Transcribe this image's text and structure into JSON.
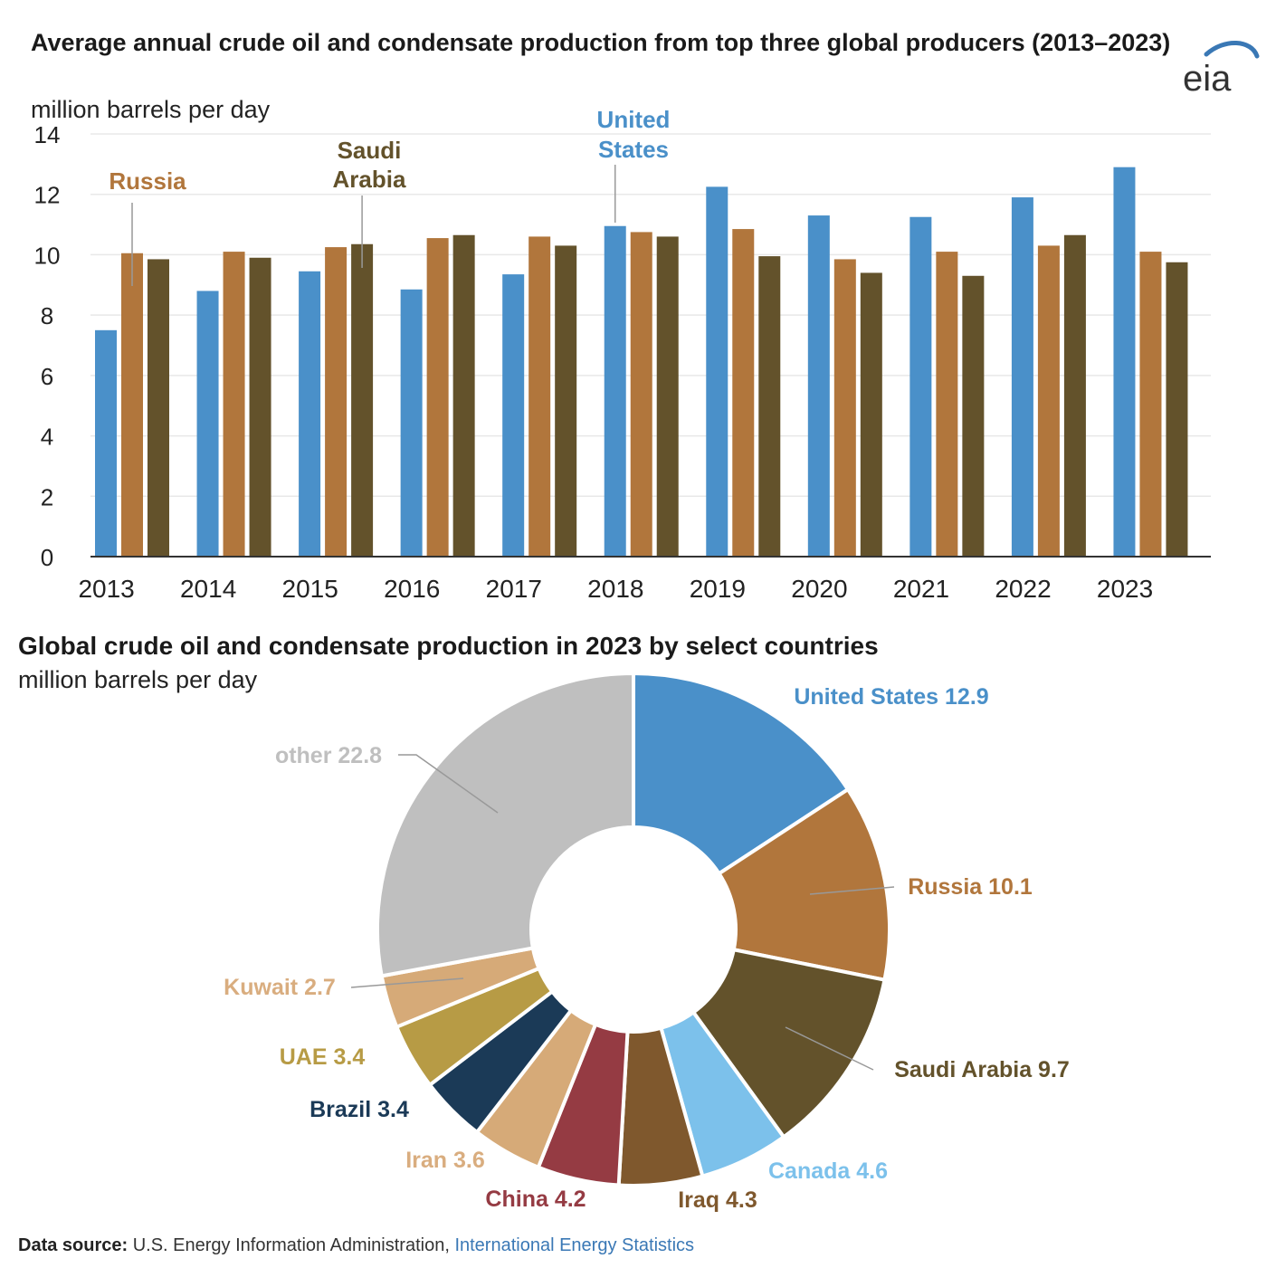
{
  "header": {
    "title": "Average annual crude oil and condensate production from top three global producers (2013–2023)",
    "units": "million barrels per day",
    "logo_text": "eia"
  },
  "pie_header": {
    "title": "Global crude oil and condensate production in 2023 by select countries",
    "units": "million barrels per day"
  },
  "footer": {
    "source_label": "Data source:",
    "source_text": " U.S. Energy Information Administration, ",
    "source_link": "International Energy Statistics"
  },
  "colors": {
    "us": "#4a90c9",
    "russia": "#b1763c",
    "saudi": "#63522b",
    "canada": "#7cc1eb",
    "iraq": "#7f582d",
    "china": "#953b43",
    "iran": "#d6aa78",
    "brazil": "#1b3a57",
    "uae": "#b79b45",
    "kuwait": "#d6aa78",
    "other": "#bfbfbf",
    "logo": "#3a78b5"
  },
  "chart_data": [
    {
      "type": "bar",
      "title": "Average annual crude oil and condensate production from top three global producers (2013–2023)",
      "ylabel": "million barrels per day",
      "ylim": [
        0,
        14
      ],
      "yticks": [
        0,
        2,
        4,
        6,
        8,
        10,
        12,
        14
      ],
      "grid": true,
      "categories": [
        "2013",
        "2014",
        "2015",
        "2016",
        "2017",
        "2018",
        "2019",
        "2020",
        "2021",
        "2022",
        "2023"
      ],
      "series": [
        {
          "name": "United States",
          "label": [
            "United",
            "States"
          ],
          "color": "#4a90c9",
          "values": [
            7.5,
            8.8,
            9.45,
            8.85,
            9.35,
            10.95,
            12.25,
            11.3,
            11.25,
            11.9,
            12.9
          ]
        },
        {
          "name": "Russia",
          "label": [
            "Russia"
          ],
          "color": "#b1763c",
          "values": [
            10.05,
            10.1,
            10.25,
            10.55,
            10.6,
            10.75,
            10.85,
            9.85,
            10.1,
            10.3,
            10.1
          ]
        },
        {
          "name": "Saudi Arabia",
          "label": [
            "Saudi",
            "Arabia"
          ],
          "color": "#63522b",
          "values": [
            9.85,
            9.9,
            10.35,
            10.65,
            10.3,
            10.6,
            9.95,
            9.4,
            9.3,
            10.65,
            9.75
          ]
        }
      ]
    },
    {
      "type": "pie",
      "title": "Global crude oil and condensate production in 2023 by select countries",
      "units": "million barrels per day",
      "slices": [
        {
          "label": "United States",
          "value": 12.9,
          "color": "#4a90c9"
        },
        {
          "label": "Russia",
          "value": 10.1,
          "color": "#b1763c"
        },
        {
          "label": "Saudi Arabia",
          "value": 9.7,
          "color": "#63522b"
        },
        {
          "label": "Canada",
          "value": 4.6,
          "color": "#7cc1eb"
        },
        {
          "label": "Iraq",
          "value": 4.3,
          "color": "#7f582d"
        },
        {
          "label": "China",
          "value": 4.2,
          "color": "#953b43"
        },
        {
          "label": "Iran",
          "value": 3.6,
          "color": "#d6aa78"
        },
        {
          "label": "Brazil",
          "value": 3.4,
          "color": "#1b3a57"
        },
        {
          "label": "UAE",
          "value": 3.4,
          "color": "#b79b45"
        },
        {
          "label": "Kuwait",
          "value": 2.7,
          "color": "#d6aa78"
        },
        {
          "label": "other",
          "value": 22.8,
          "color": "#bfbfbf"
        }
      ]
    }
  ]
}
